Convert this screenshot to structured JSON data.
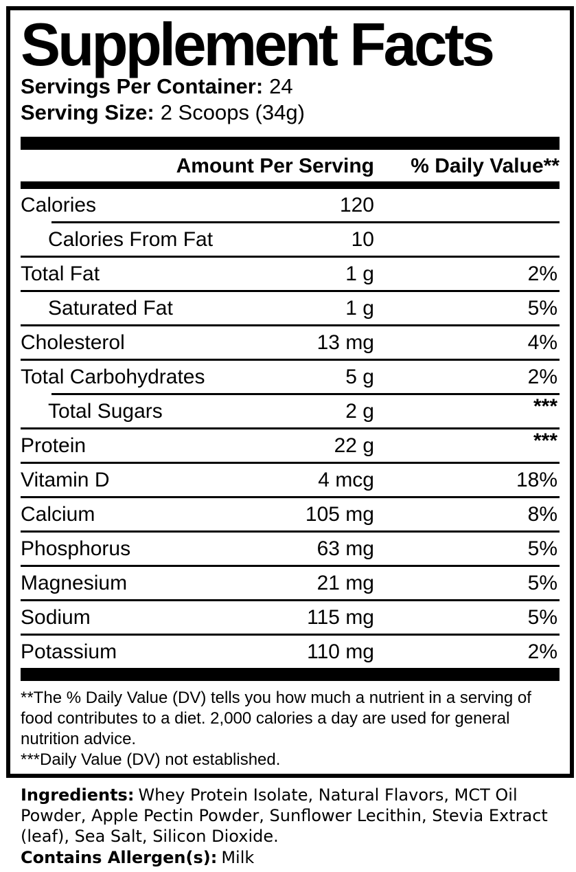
{
  "panel": {
    "title": "Supplement Facts",
    "servings_per_container_label": "Servings Per Container:",
    "servings_per_container_value": "24",
    "serving_size_label": "Serving Size:",
    "serving_size_value": "2 Scoops (34g)",
    "columns": {
      "amount": "Amount Per Serving",
      "daily_value": "% Daily Value**"
    },
    "rows": [
      {
        "name": "Calories",
        "amount": "120",
        "dv": "",
        "indent": false,
        "sep_above": "none",
        "dv_stars": false
      },
      {
        "name": "Calories From Fat",
        "amount": "10",
        "dv": "",
        "indent": true,
        "sep_above": "indent",
        "dv_stars": false
      },
      {
        "name": "Total Fat",
        "amount": "1 g",
        "dv": "2%",
        "indent": false,
        "sep_above": "full",
        "dv_stars": false
      },
      {
        "name": "Saturated Fat",
        "amount": "1 g",
        "dv": "5%",
        "indent": true,
        "sep_above": "full",
        "dv_stars": false
      },
      {
        "name": "Cholesterol",
        "amount": "13 mg",
        "dv": "4%",
        "indent": false,
        "sep_above": "full",
        "dv_stars": false
      },
      {
        "name": "Total Carbohydrates",
        "amount": "5 g",
        "dv": "2%",
        "indent": false,
        "sep_above": "full",
        "dv_stars": false
      },
      {
        "name": "Total Sugars",
        "amount": "2 g",
        "dv": "***",
        "indent": true,
        "sep_above": "indent",
        "dv_stars": true
      },
      {
        "name": "Protein",
        "amount": "22 g",
        "dv": "***",
        "indent": false,
        "sep_above": "full",
        "dv_stars": true
      },
      {
        "name": "Vitamin D",
        "amount": "4 mcg",
        "dv": "18%",
        "indent": false,
        "sep_above": "full",
        "dv_stars": false
      },
      {
        "name": "Calcium",
        "amount": "105 mg",
        "dv": "8%",
        "indent": false,
        "sep_above": "full",
        "dv_stars": false
      },
      {
        "name": "Phosphorus",
        "amount": "63 mg",
        "dv": "5%",
        "indent": false,
        "sep_above": "full",
        "dv_stars": false
      },
      {
        "name": "Magnesium",
        "amount": "21 mg",
        "dv": "5%",
        "indent": false,
        "sep_above": "full",
        "dv_stars": false
      },
      {
        "name": "Sodium",
        "amount": "115 mg",
        "dv": "5%",
        "indent": false,
        "sep_above": "full",
        "dv_stars": false
      },
      {
        "name": "Potassium",
        "amount": "110 mg",
        "dv": "2%",
        "indent": false,
        "sep_above": "full",
        "dv_stars": false
      }
    ],
    "footnotes": [
      "**The % Daily Value (DV) tells you how much a nutrient in a serving of food contributes to a diet. 2,000 calories a day are used for general nutrition advice.",
      "***Daily Value (DV) not established."
    ]
  },
  "ingredients": {
    "label": "Ingredients:",
    "text": "Whey Protein Isolate, Natural Flavors, MCT Oil Powder, Apple Pectin Powder, Sunflower Lecithin, Stevia Extract (leaf), Sea Salt, Silicon Dioxide.",
    "allergen_label": "Contains Allergen(s):",
    "allergen_value": "Milk"
  },
  "colors": {
    "text": "#000000",
    "background": "#ffffff"
  }
}
